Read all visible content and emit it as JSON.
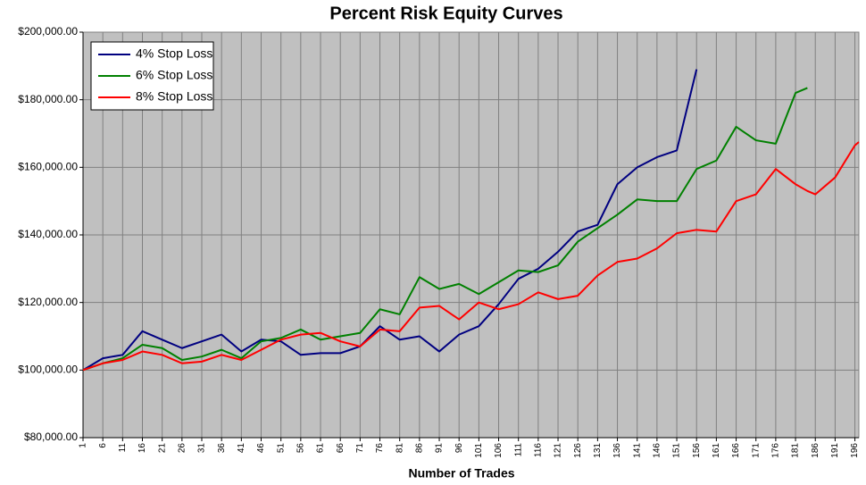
{
  "chart_data": {
    "type": "line",
    "title": "Percent Risk Equity Curves",
    "x_label": "Number of Trades",
    "x": [
      1,
      6,
      11,
      16,
      21,
      26,
      31,
      36,
      41,
      46,
      51,
      56,
      61,
      66,
      71,
      76,
      81,
      86,
      91,
      96,
      101,
      106,
      111,
      116,
      121,
      126,
      131,
      136,
      141,
      146,
      151,
      156,
      161,
      166,
      171,
      176,
      181,
      184,
      186,
      191,
      196,
      197
    ],
    "xlim": [
      1,
      197
    ],
    "xticks": [
      1,
      6,
      11,
      16,
      21,
      26,
      31,
      36,
      41,
      46,
      51,
      56,
      61,
      66,
      71,
      76,
      81,
      86,
      91,
      96,
      101,
      106,
      111,
      116,
      121,
      126,
      131,
      136,
      141,
      146,
      151,
      156,
      161,
      166,
      171,
      176,
      181,
      186,
      191,
      196
    ],
    "ylim": [
      80000,
      200000
    ],
    "yticks": [
      {
        "value": 80000,
        "label": "$80,000.00"
      },
      {
        "value": 100000,
        "label": "$100,000.00"
      },
      {
        "value": 120000,
        "label": "$120,000.00"
      },
      {
        "value": 140000,
        "label": "$140,000.00"
      },
      {
        "value": 160000,
        "label": "$160,000.00"
      },
      {
        "value": 180000,
        "label": "$180,000.00"
      },
      {
        "value": 200000,
        "label": "$200,000.00"
      }
    ],
    "grid": true,
    "legend": "upper left",
    "series": [
      {
        "name": "4% Stop Loss",
        "color": "#000080",
        "values": [
          100000,
          103500,
          104500,
          111500,
          109000,
          106500,
          108500,
          110500,
          105500,
          109000,
          108500,
          104500,
          105000,
          105000,
          107000,
          113000,
          109000,
          110000,
          105500,
          110500,
          113000,
          119500,
          127000,
          130000,
          135000,
          141000,
          143000,
          155000,
          160000,
          163000,
          165000,
          189000,
          null,
          null,
          null,
          null,
          null,
          null,
          null,
          null,
          null,
          null
        ]
      },
      {
        "name": "6% Stop Loss",
        "color": "#008000",
        "values": [
          100000,
          102000,
          103500,
          107500,
          106500,
          103000,
          104000,
          106000,
          103500,
          108500,
          109500,
          112000,
          109000,
          110000,
          111000,
          118000,
          116500,
          127500,
          124000,
          125500,
          122500,
          126000,
          129500,
          129000,
          131000,
          138000,
          142000,
          146000,
          150500,
          150000,
          150000,
          159500,
          162000,
          172000,
          168000,
          167000,
          182000,
          183500,
          null,
          null,
          null,
          null
        ]
      },
      {
        "name": "8% Stop Loss",
        "color": "#ff0000",
        "values": [
          100000,
          102000,
          103000,
          105500,
          104500,
          102000,
          102500,
          104500,
          103000,
          106000,
          109000,
          110500,
          111000,
          108500,
          107000,
          112000,
          111500,
          118500,
          119000,
          115000,
          120000,
          118000,
          119500,
          123000,
          121000,
          122000,
          128000,
          132000,
          133000,
          136000,
          140500,
          141500,
          141000,
          150000,
          152000,
          159500,
          155000,
          153000,
          152000,
          157000,
          166500,
          167500
        ]
      }
    ]
  }
}
